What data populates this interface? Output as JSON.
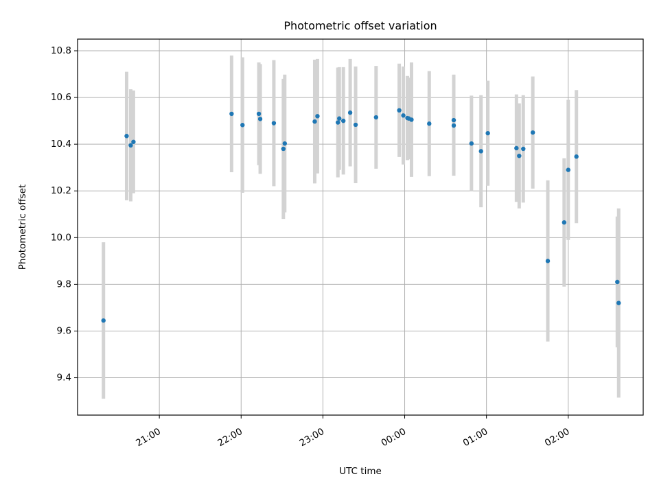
{
  "chart_data": {
    "type": "scatter",
    "title": "Photometric offset variation",
    "xlabel": "UTC time",
    "ylabel": "Photometric offset",
    "x_axis": "time (UTC, HH:MM)",
    "x_ticks": [
      "21:00",
      "22:00",
      "23:00",
      "00:00",
      "01:00",
      "02:00"
    ],
    "y_ticks": [
      "9.4",
      "9.6",
      "9.8",
      "10.0",
      "10.2",
      "10.4",
      "10.6",
      "10.8"
    ],
    "xlim": [
      "20:00",
      "02:55"
    ],
    "ylim": [
      9.24,
      10.85
    ],
    "grid": true,
    "colors": {
      "point": "#1f77b4",
      "errorbar": "#d3d3d3",
      "grid": "#b0b0b0"
    },
    "series": [
      {
        "points": [
          {
            "x": "20:19",
            "y": 9.645,
            "yerr": 0.335
          },
          {
            "x": "20:36",
            "y": 10.435,
            "yerr": 0.275
          },
          {
            "x": "20:39",
            "y": 10.395,
            "yerr": 0.24
          },
          {
            "x": "20:41",
            "y": 10.41,
            "yerr": 0.22
          },
          {
            "x": "21:53",
            "y": 10.53,
            "yerr": 0.25
          },
          {
            "x": "22:01",
            "y": 10.482,
            "yerr": 0.29
          },
          {
            "x": "22:13",
            "y": 10.53,
            "yerr": 0.22
          },
          {
            "x": "22:14",
            "y": 10.508,
            "yerr": 0.235
          },
          {
            "x": "22:24",
            "y": 10.49,
            "yerr": 0.27
          },
          {
            "x": "22:31",
            "y": 10.38,
            "yerr": 0.3
          },
          {
            "x": "22:32",
            "y": 10.403,
            "yerr": 0.295
          },
          {
            "x": "22:54",
            "y": 10.497,
            "yerr": 0.265
          },
          {
            "x": "22:56",
            "y": 10.52,
            "yerr": 0.245
          },
          {
            "x": "23:11",
            "y": 10.493,
            "yerr": 0.235
          },
          {
            "x": "23:12",
            "y": 10.51,
            "yerr": 0.22
          },
          {
            "x": "23:15",
            "y": 10.5,
            "yerr": 0.23
          },
          {
            "x": "23:20",
            "y": 10.535,
            "yerr": 0.23
          },
          {
            "x": "23:24",
            "y": 10.483,
            "yerr": 0.25
          },
          {
            "x": "23:39",
            "y": 10.515,
            "yerr": 0.22
          },
          {
            "x": "23:56",
            "y": 10.545,
            "yerr": 0.2
          },
          {
            "x": "23:59",
            "y": 10.523,
            "yerr": 0.21
          },
          {
            "x": "00:02",
            "y": 10.512,
            "yerr": 0.18
          },
          {
            "x": "00:03",
            "y": 10.51,
            "yerr": 0.175
          },
          {
            "x": "00:05",
            "y": 10.505,
            "yerr": 0.245
          },
          {
            "x": "00:18",
            "y": 10.488,
            "yerr": 0.225
          },
          {
            "x": "00:36",
            "y": 10.503,
            "yerr": 0.195
          },
          {
            "x": "00:36",
            "y": 10.48,
            "yerr": 0.215
          },
          {
            "x": "00:49",
            "y": 10.403,
            "yerr": 0.205
          },
          {
            "x": "00:56",
            "y": 10.37,
            "yerr": 0.24
          },
          {
            "x": "01:01",
            "y": 10.447,
            "yerr": 0.225
          },
          {
            "x": "01:22",
            "y": 10.383,
            "yerr": 0.23
          },
          {
            "x": "01:24",
            "y": 10.35,
            "yerr": 0.225
          },
          {
            "x": "01:27",
            "y": 10.38,
            "yerr": 0.23
          },
          {
            "x": "01:34",
            "y": 10.45,
            "yerr": 0.24
          },
          {
            "x": "01:45",
            "y": 9.9,
            "yerr": 0.345
          },
          {
            "x": "01:57",
            "y": 10.065,
            "yerr": 0.275
          },
          {
            "x": "02:00",
            "y": 10.29,
            "yerr": 0.3
          },
          {
            "x": "02:06",
            "y": 10.347,
            "yerr": 0.285
          },
          {
            "x": "02:36",
            "y": 9.81,
            "yerr": 0.28
          },
          {
            "x": "02:37",
            "y": 9.72,
            "yerr": 0.405
          }
        ]
      }
    ]
  }
}
